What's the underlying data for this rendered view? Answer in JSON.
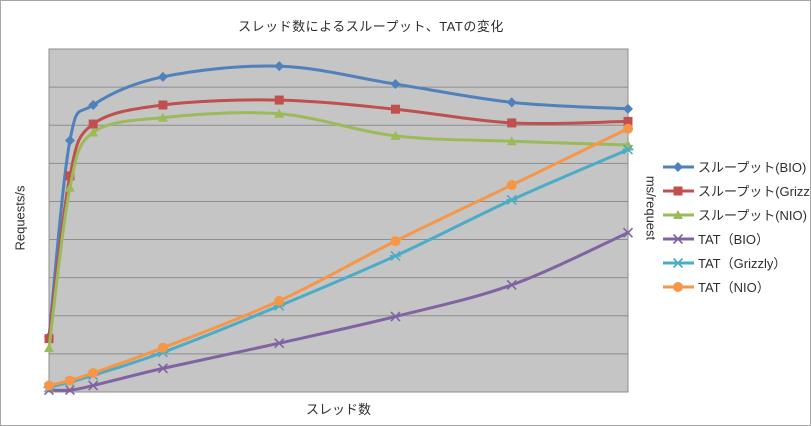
{
  "chart": {
    "title": "スレッド数によるスループット、TATの変化",
    "x_axis_label": "スレッド数",
    "y_axis_left_label": "Requests/s",
    "y_axis_right_label": "ms/request"
  },
  "chart_data": {
    "type": "line",
    "title": "スレッド数によるスループット、TATの変化",
    "xlabel": "スレッド数",
    "ylabel_left": "Requests/s",
    "ylabel_right": "ms/request",
    "tick_labels": "none (both axes are unlabeled in the image)",
    "x_range": [
      1,
      250
    ],
    "x": [
      1,
      10,
      20,
      50,
      100,
      150,
      200,
      250
    ],
    "y_units": "horizontal-gridline intervals from the bottom axis (plot has 9 equal divisions, no numeric labels shown)",
    "y_gridline_divisions": 9,
    "grid": "horizontal only",
    "smoothed_lines": true,
    "legend_position": "right",
    "plot_bg": "#c5c5c5",
    "gridline_color": "#8e8e8e",
    "series": [
      {
        "name": "スループット(BIO)",
        "axis": "left",
        "color": "#4F81BD",
        "marker": "diamond",
        "values": [
          1.45,
          6.6,
          7.53,
          8.27,
          8.55,
          8.08,
          7.6,
          7.43
        ]
      },
      {
        "name": "スループット(Grizzly)",
        "axis": "left",
        "color": "#C0504D",
        "marker": "square",
        "values": [
          1.4,
          5.67,
          7.03,
          7.53,
          7.66,
          7.42,
          7.06,
          7.1
        ]
      },
      {
        "name": "スループット(NIO)",
        "axis": "left",
        "color": "#9BBB59",
        "marker": "triangle",
        "values": [
          1.15,
          5.36,
          6.81,
          7.2,
          7.3,
          6.72,
          6.58,
          6.48
        ]
      },
      {
        "name": "TAT（BIO）",
        "axis": "right",
        "color": "#8064A2",
        "marker": "x",
        "values": [
          0.05,
          0.05,
          0.17,
          0.62,
          1.28,
          1.98,
          2.81,
          4.18
        ]
      },
      {
        "name": "TAT（Grizzly）",
        "axis": "right",
        "color": "#4BACC6",
        "marker": "asterisk",
        "values": [
          0.12,
          0.26,
          0.44,
          1.04,
          2.26,
          3.57,
          5.04,
          6.36
        ]
      },
      {
        "name": "TAT（NIO）",
        "axis": "right",
        "color": "#F79646",
        "marker": "circle",
        "values": [
          0.17,
          0.3,
          0.5,
          1.16,
          2.39,
          3.96,
          5.43,
          6.91
        ]
      }
    ]
  }
}
